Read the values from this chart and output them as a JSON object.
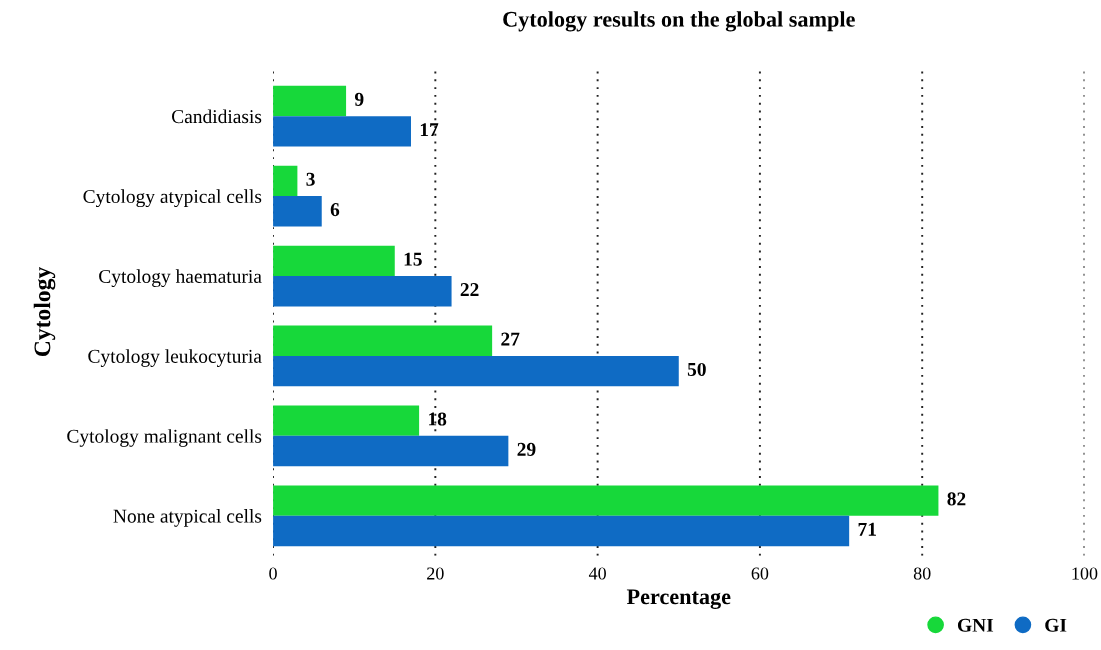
{
  "chart_data": {
    "type": "bar",
    "orientation": "horizontal",
    "title": "Cytology results on the global sample",
    "xlabel": "Percentage",
    "ylabel": "Cytology",
    "categories": [
      "Candidiasis",
      "Cytology atypical cells",
      "Cytology haematuria",
      "Cytology leukocyturia",
      "Cytology malignant cells",
      "None atypical cells"
    ],
    "series": [
      {
        "name": "GNI",
        "color": "#17d83a",
        "values": [
          9,
          3,
          15,
          27,
          18,
          82
        ]
      },
      {
        "name": "GI",
        "color": "#0f6bc4",
        "values": [
          17,
          6,
          22,
          50,
          29,
          71
        ]
      }
    ],
    "xlim": [
      0,
      100
    ],
    "xticks": [
      0,
      20,
      40,
      60,
      80,
      100
    ],
    "grid": "x",
    "legend": "bottom right",
    "data_labels": true
  }
}
